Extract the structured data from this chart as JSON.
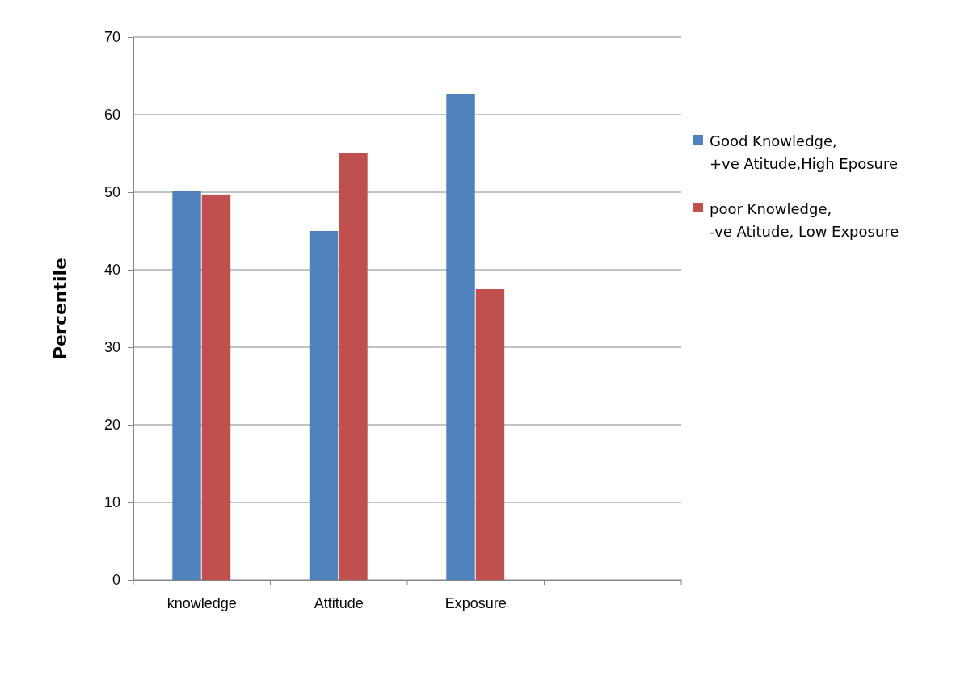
{
  "chart_data": {
    "type": "bar",
    "ylabel": "Percentile",
    "categories": [
      "knowledge",
      "Attitude",
      "Exposure",
      null
    ],
    "series": [
      {
        "name": "Good Knowledge,+ve Atitude,High Eposure",
        "color": "#4f81bd",
        "values": [
          50.2,
          45,
          62.7,
          null
        ]
      },
      {
        "name": "poor Knowledge, -ve Atitude, Low Exposure",
        "color": "#c0504d",
        "values": [
          49.7,
          55,
          37.5,
          null
        ]
      }
    ],
    "ylim": [
      0,
      70
    ],
    "yticks": [
      0,
      10,
      20,
      30,
      40,
      50,
      60,
      70
    ],
    "grid": "y",
    "legend": "right"
  }
}
